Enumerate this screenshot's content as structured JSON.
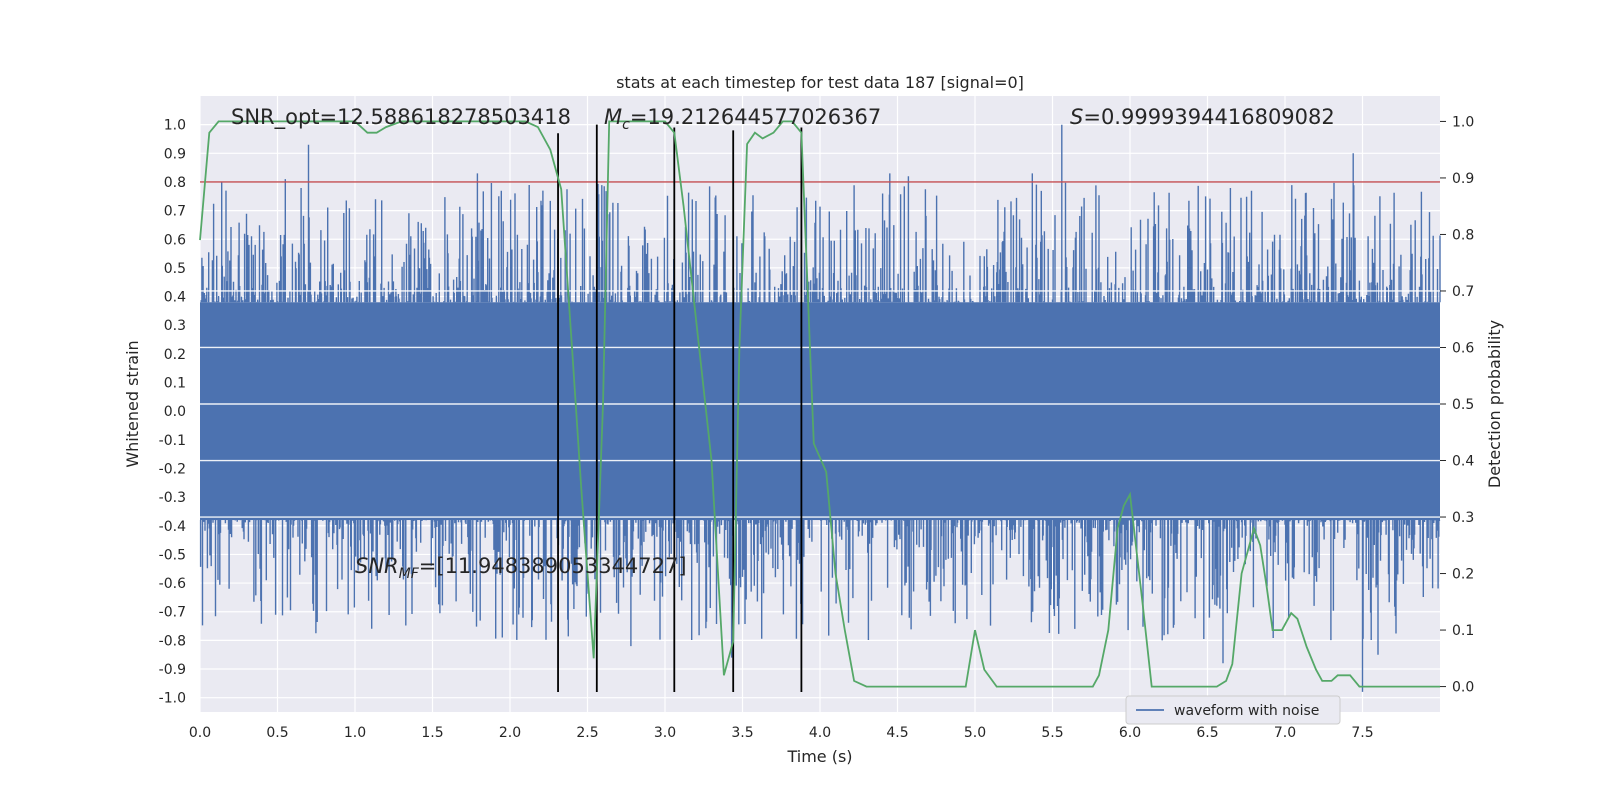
{
  "chart_data": {
    "type": "line",
    "title": "stats at each timestep for test data 187 [signal=0]",
    "xlabel": "Time (s)",
    "ylabel": "Whitened strain",
    "ylabel_right": "Detection probability",
    "xlim": [
      0.0,
      8.0
    ],
    "ylim": [
      -1.05,
      1.1
    ],
    "ylim_right": [
      -0.045,
      1.045
    ],
    "xticks": [
      "0.0",
      "0.5",
      "1.0",
      "1.5",
      "2.0",
      "2.5",
      "3.0",
      "3.5",
      "4.0",
      "4.5",
      "5.0",
      "5.5",
      "6.0",
      "6.5",
      "7.0",
      "7.5"
    ],
    "yticks_left": [
      "1.0",
      "0.9",
      "0.8",
      "0.7",
      "0.6",
      "0.5",
      "0.4",
      "0.3",
      "0.2",
      "0.1",
      "0.0",
      "-0.1",
      "-0.2",
      "-0.3",
      "-0.4",
      "-0.5",
      "-0.6",
      "-0.7",
      "-0.8",
      "-0.9",
      "-1.0"
    ],
    "yticks_right": [
      "1.0",
      "0.9",
      "0.8",
      "0.7",
      "0.6",
      "0.5",
      "0.4",
      "0.3",
      "0.2",
      "0.1",
      "0.0"
    ],
    "grid": true,
    "legend_placement": "lower-right",
    "colors": {
      "waveform": "#4c72b0",
      "probability": "#55a868",
      "threshold": "#c44e52",
      "markers": "#000000",
      "background": "#eaeaf2",
      "grid": "#ffffff"
    },
    "annotations": {
      "snr_opt": "SNR_opt=12.588618278503418",
      "mc": "M",
      "mc_sub": "c",
      "mc_value": "=19.212644577026367",
      "s_label": "S",
      "s_value": "=0.9999394416809082",
      "snr_mf": "SNR",
      "snr_mf_sub": "MF",
      "snr_mf_value": "=[11.948389053344727]"
    },
    "threshold_y": 0.8,
    "vertical_lines": [
      {
        "x": 2.31,
        "y_min": -0.98,
        "y_max": 0.97
      },
      {
        "x": 2.56,
        "y_min": -0.98,
        "y_max": 1.0
      },
      {
        "x": 3.06,
        "y_min": -0.98,
        "y_max": 0.99
      },
      {
        "x": 3.44,
        "y_min": -0.98,
        "y_max": 0.98
      },
      {
        "x": 3.88,
        "y_min": -0.98,
        "y_max": 0.99
      }
    ],
    "series": [
      {
        "name": "waveform with noise",
        "kind": "noise-envelope",
        "core_amplitude": 0.38,
        "sample_spacing": 0.004,
        "peaks": [
          {
            "x": 0.7,
            "y": 0.93
          },
          {
            "x": 5.56,
            "y": 1.0
          },
          {
            "x": 7.44,
            "y": 0.9
          },
          {
            "x": 0.55,
            "y": 0.81
          },
          {
            "x": 1.79,
            "y": 0.83
          },
          {
            "x": 4.45,
            "y": 0.83
          },
          {
            "x": 4.57,
            "y": 0.82
          },
          {
            "x": 5.37,
            "y": 0.83
          },
          {
            "x": 1.95,
            "y": -0.79
          },
          {
            "x": 2.78,
            "y": -0.82
          },
          {
            "x": 3.43,
            "y": -0.86
          },
          {
            "x": 6.6,
            "y": -0.88
          },
          {
            "x": 7.5,
            "y": -0.98
          },
          {
            "x": 7.6,
            "y": -0.85
          }
        ]
      },
      {
        "name": "",
        "axis": "right",
        "x": [
          0.0,
          0.06,
          0.12,
          0.3,
          0.6,
          0.9,
          1.0,
          1.08,
          1.14,
          1.2,
          1.3,
          1.5,
          1.8,
          2.1,
          2.18,
          2.26,
          2.33,
          2.4,
          2.46,
          2.5,
          2.54,
          2.6,
          2.64,
          2.7,
          2.8,
          2.9,
          3.0,
          3.06,
          3.12,
          3.2,
          3.3,
          3.38,
          3.44,
          3.48,
          3.53,
          3.58,
          3.63,
          3.7,
          3.76,
          3.82,
          3.88,
          3.96,
          4.04,
          4.1,
          4.16,
          4.22,
          4.3,
          4.4,
          4.5,
          4.6,
          4.8,
          4.94,
          5.0,
          5.06,
          5.14,
          5.2,
          5.4,
          5.6,
          5.76,
          5.8,
          5.86,
          5.92,
          5.96,
          6.0,
          6.08,
          6.14,
          6.2,
          6.4,
          6.56,
          6.62,
          6.66,
          6.72,
          6.8,
          6.84,
          6.88,
          6.92,
          6.98,
          7.04,
          7.08,
          7.14,
          7.2,
          7.24,
          7.3,
          7.34,
          7.42,
          7.48,
          7.54,
          7.6,
          7.8,
          8.0
        ],
        "y": [
          0.79,
          0.98,
          1.0,
          1.0,
          1.0,
          1.0,
          1.0,
          0.98,
          0.98,
          0.99,
          1.0,
          1.0,
          1.0,
          1.0,
          0.99,
          0.95,
          0.88,
          0.6,
          0.35,
          0.2,
          0.05,
          0.5,
          1.0,
          1.0,
          1.0,
          1.0,
          1.0,
          0.98,
          0.85,
          0.65,
          0.4,
          0.02,
          0.08,
          0.6,
          0.96,
          0.98,
          0.97,
          0.98,
          1.0,
          1.0,
          0.98,
          0.43,
          0.38,
          0.2,
          0.1,
          0.01,
          0.0,
          0.0,
          0.0,
          0.0,
          0.0,
          0.0,
          0.1,
          0.03,
          0.0,
          0.0,
          0.0,
          0.0,
          0.0,
          0.02,
          0.1,
          0.28,
          0.32,
          0.34,
          0.15,
          0.0,
          0.0,
          0.0,
          0.0,
          0.01,
          0.04,
          0.2,
          0.28,
          0.25,
          0.18,
          0.1,
          0.1,
          0.13,
          0.12,
          0.07,
          0.03,
          0.01,
          0.01,
          0.02,
          0.02,
          0.0,
          0.0,
          0.0,
          0.0,
          0.0
        ]
      }
    ]
  }
}
